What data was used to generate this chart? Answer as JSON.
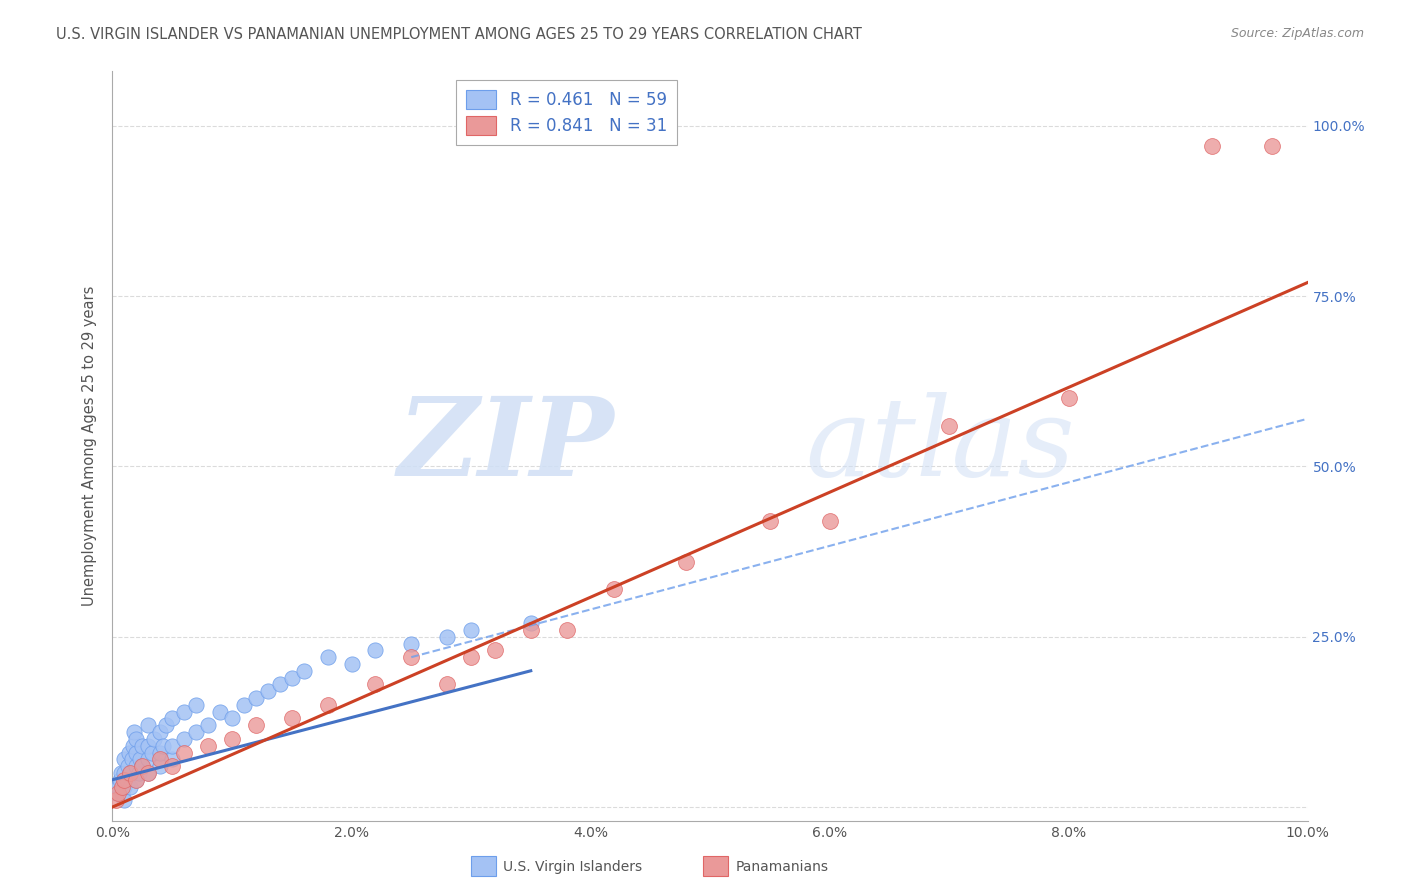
{
  "title": "U.S. VIRGIN ISLANDER VS PANAMANIAN UNEMPLOYMENT AMONG AGES 25 TO 29 YEARS CORRELATION CHART",
  "source": "Source: ZipAtlas.com",
  "ylabel": "Unemployment Among Ages 25 to 29 years",
  "xlim": [
    0.0,
    0.1
  ],
  "ylim": [
    -0.02,
    1.08
  ],
  "R_blue": 0.461,
  "N_blue": 59,
  "R_pink": 0.841,
  "N_pink": 31,
  "blue_color": "#a4c2f4",
  "blue_edge_color": "#6d9eeb",
  "pink_color": "#ea9999",
  "pink_edge_color": "#e06666",
  "blue_line_color": "#4472c4",
  "pink_line_color": "#cc4125",
  "dashed_line_color": "#6d9eeb",
  "legend_label_blue": "U.S. Virgin Islanders",
  "legend_label_pink": "Panamanians",
  "blue_scatter_x": [
    0.0003,
    0.0005,
    0.0006,
    0.0007,
    0.0008,
    0.001,
    0.001,
    0.001,
    0.001,
    0.0012,
    0.0013,
    0.0014,
    0.0015,
    0.0015,
    0.0016,
    0.0017,
    0.0018,
    0.002,
    0.002,
    0.002,
    0.002,
    0.0022,
    0.0023,
    0.0025,
    0.0025,
    0.003,
    0.003,
    0.003,
    0.003,
    0.0033,
    0.0035,
    0.004,
    0.004,
    0.004,
    0.0042,
    0.0045,
    0.005,
    0.005,
    0.005,
    0.006,
    0.006,
    0.007,
    0.007,
    0.008,
    0.009,
    0.01,
    0.011,
    0.012,
    0.013,
    0.014,
    0.015,
    0.016,
    0.018,
    0.02,
    0.022,
    0.025,
    0.028,
    0.03,
    0.035
  ],
  "blue_scatter_y": [
    0.02,
    0.03,
    0.04,
    0.05,
    0.02,
    0.01,
    0.03,
    0.05,
    0.07,
    0.04,
    0.06,
    0.08,
    0.03,
    0.05,
    0.07,
    0.09,
    0.11,
    0.04,
    0.06,
    0.08,
    0.1,
    0.05,
    0.07,
    0.06,
    0.09,
    0.05,
    0.07,
    0.09,
    0.12,
    0.08,
    0.1,
    0.06,
    0.08,
    0.11,
    0.09,
    0.12,
    0.07,
    0.09,
    0.13,
    0.1,
    0.14,
    0.11,
    0.15,
    0.12,
    0.14,
    0.13,
    0.15,
    0.16,
    0.17,
    0.18,
    0.19,
    0.2,
    0.22,
    0.21,
    0.23,
    0.24,
    0.25,
    0.26,
    0.27
  ],
  "pink_scatter_x": [
    0.0003,
    0.0005,
    0.0008,
    0.001,
    0.0015,
    0.002,
    0.0025,
    0.003,
    0.004,
    0.005,
    0.006,
    0.008,
    0.01,
    0.012,
    0.015,
    0.018,
    0.022,
    0.025,
    0.028,
    0.03,
    0.032,
    0.035,
    0.038,
    0.042,
    0.048,
    0.055,
    0.06,
    0.07,
    0.08,
    0.092,
    0.097
  ],
  "pink_scatter_y": [
    0.01,
    0.02,
    0.03,
    0.04,
    0.05,
    0.04,
    0.06,
    0.05,
    0.07,
    0.06,
    0.08,
    0.09,
    0.1,
    0.12,
    0.13,
    0.15,
    0.18,
    0.22,
    0.18,
    0.22,
    0.23,
    0.26,
    0.26,
    0.32,
    0.36,
    0.42,
    0.42,
    0.56,
    0.6,
    0.97,
    0.97
  ],
  "blue_line_x0": 0.0,
  "blue_line_y0": 0.04,
  "blue_line_x1": 0.035,
  "blue_line_y1": 0.2,
  "pink_line_x0": 0.0,
  "pink_line_y0": 0.0,
  "pink_line_x1": 0.1,
  "pink_line_y1": 0.77,
  "dash_line_x0": 0.025,
  "dash_line_y0": 0.22,
  "dash_line_x1": 0.1,
  "dash_line_y1": 0.57
}
